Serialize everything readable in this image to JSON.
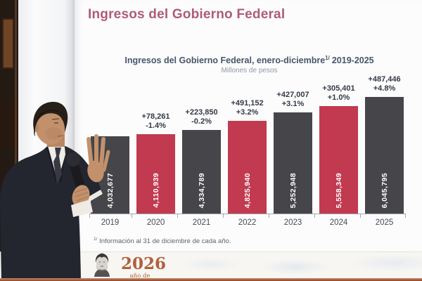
{
  "slide": {
    "title": "Ingresos del Gobierno Federal"
  },
  "chart_data": {
    "type": "bar",
    "title": "Ingresos del Gobierno Federal, enero-diciembre",
    "title_superscript": "1/",
    "title_suffix": "2019-2025",
    "subtitle": "Millones de pesos",
    "categories": [
      "2019",
      "2020",
      "2021",
      "2022",
      "2023",
      "2024",
      "2025"
    ],
    "values": [
      4032677,
      4110939,
      4334789,
      4825940,
      5252948,
      5558349,
      6045795
    ],
    "value_labels": [
      "4,032,677",
      "4,110,939",
      "4,334,789",
      "4,825,940",
      "5,252,948",
      "5,558,349",
      "6,045,795"
    ],
    "annotations": [
      {
        "delta": "",
        "pct": ""
      },
      {
        "delta": "+78,261",
        "pct": "-1.4%"
      },
      {
        "delta": "+223,850",
        "pct": "-0.2%"
      },
      {
        "delta": "+491,152",
        "pct": "+3.2%"
      },
      {
        "delta": "+427,007",
        "pct": "+3.1%"
      },
      {
        "delta": "+305,401",
        "pct": "+1.0%"
      },
      {
        "delta": "+487,446",
        "pct": "+4.8%"
      }
    ],
    "bar_colors": [
      "#45454a",
      "#c13a50",
      "#45454a",
      "#c13a50",
      "#45454a",
      "#c13a50",
      "#45454a"
    ],
    "ylim": [
      0,
      6045795
    ],
    "grid": false,
    "legend": "none",
    "footnote_superscript": "1/",
    "footnote_text": "Información al 31 de diciembre de cada año."
  },
  "footer": {
    "year": "2026",
    "caption": "año de"
  },
  "colors": {
    "slide_title": "#b05b76",
    "chart_title": "#47566b",
    "subtitle": "#8f98a4",
    "annotation_text": "#343a45",
    "bar_dark": "#45454a",
    "bar_red": "#c13a50",
    "bar_value_text": "#ffffff",
    "footer_accent": "#b2603b",
    "bottom_line": "#93442a"
  }
}
